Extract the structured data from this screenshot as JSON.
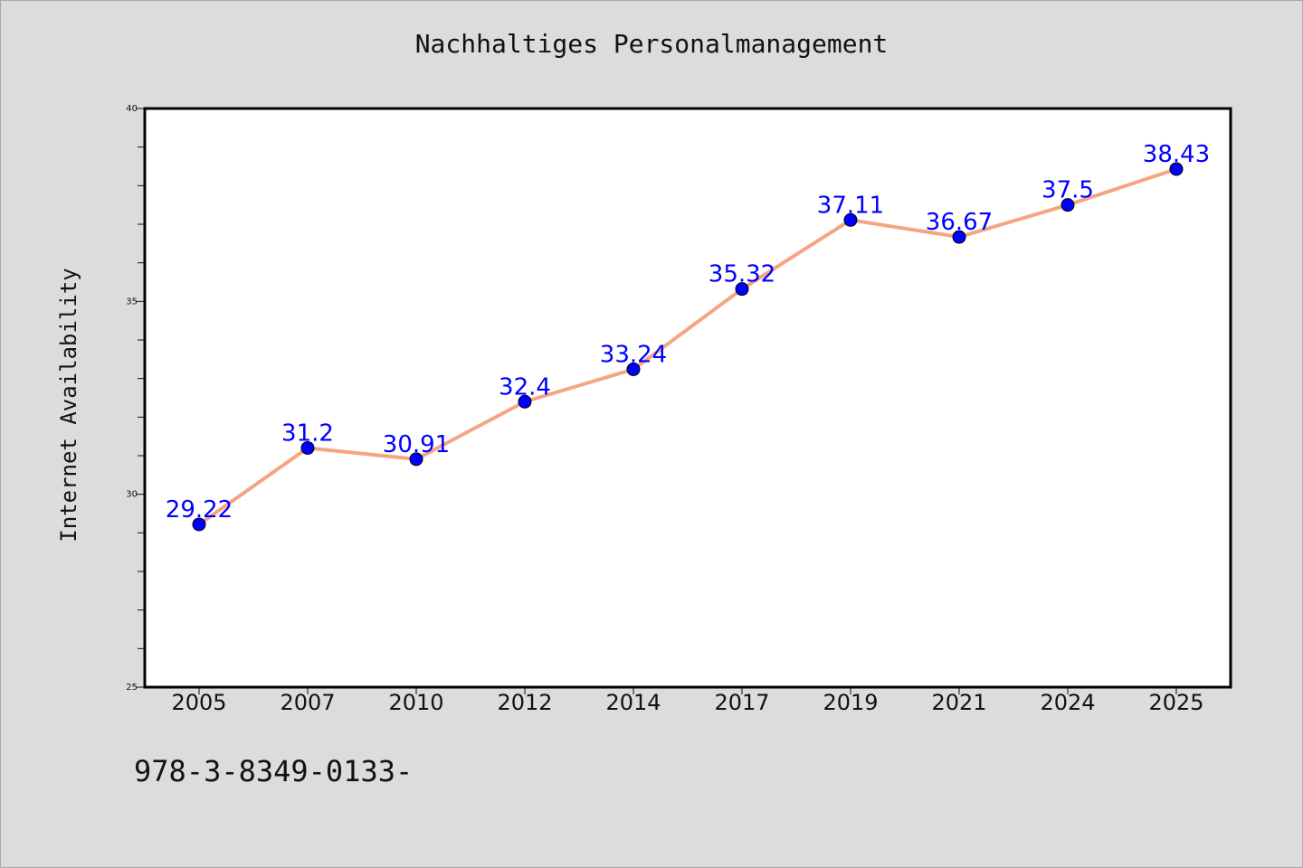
{
  "page": {
    "footer_code": "978-3-8349-0133-"
  },
  "colors": {
    "background": "#dcdcdc",
    "plot_background": "#ffffff",
    "line": "#f4a582",
    "marker": "#0000ff",
    "data_label": "#0000ff"
  },
  "chart_data": {
    "type": "line",
    "title": "Nachhaltiges Personalmanagement",
    "xlabel": "",
    "ylabel": "Internet Availability",
    "categories": [
      "2005",
      "2007",
      "2010",
      "2012",
      "2014",
      "2017",
      "2019",
      "2021",
      "2024",
      "2025"
    ],
    "series": [
      {
        "values": [
          29.22,
          31.2,
          30.91,
          32.4,
          33.24,
          35.32,
          37.11,
          36.67,
          37.5,
          38.43
        ],
        "data_labels": [
          "29.22",
          "31.2",
          "30.91",
          "32.4",
          "33.24",
          "35.32",
          "37.11",
          "36.67",
          "37.5",
          "38.43"
        ]
      }
    ],
    "ylim": [
      25,
      40
    ],
    "y_major_ticks": [
      25,
      30,
      35,
      40
    ],
    "y_minor_step": 1,
    "grid": false,
    "legend": "none",
    "markers": "circle"
  }
}
